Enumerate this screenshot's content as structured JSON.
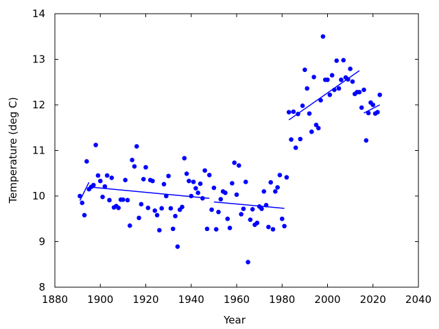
{
  "chart_data": {
    "type": "scatter",
    "title": "",
    "xlabel": "Year",
    "ylabel": "Temperature (deg C)",
    "xlim": [
      1880,
      2040
    ],
    "ylim": [
      8,
      14
    ],
    "xticks": [
      "1880",
      "1900",
      "1920",
      "1940",
      "1960",
      "1980",
      "2000",
      "2020",
      "2040"
    ],
    "yticks": [
      "8",
      "9",
      "10",
      "11",
      "12",
      "13",
      "14"
    ],
    "grid": false,
    "legend": "none",
    "colors": {
      "points": "#0000ff",
      "lines": "#0000ff",
      "axes": "#000000"
    },
    "series": [
      {
        "type": "scatter",
        "x": [
          1891,
          1892,
          1893,
          1894,
          1895,
          1896,
          1897,
          1898,
          1899,
          1900,
          1901,
          1902,
          1903,
          1904,
          1905,
          1906,
          1907,
          1908,
          1909,
          1910,
          1911,
          1912,
          1913,
          1914,
          1915,
          1916,
          1917,
          1918,
          1919,
          1920,
          1921,
          1922,
          1923,
          1924,
          1925,
          1926,
          1927,
          1928,
          1929,
          1930,
          1931,
          1932,
          1933,
          1934,
          1935,
          1936,
          1937,
          1938,
          1939,
          1940,
          1941,
          1942,
          1943,
          1944,
          1945,
          1946,
          1947,
          1948,
          1949,
          1950,
          1951,
          1952,
          1953,
          1954,
          1955,
          1956,
          1957,
          1958,
          1959,
          1960,
          1961,
          1962,
          1963,
          1964,
          1965,
          1966,
          1967,
          1968,
          1969,
          1970,
          1971,
          1972,
          1973,
          1974,
          1975,
          1976,
          1977,
          1978,
          1979,
          1980,
          1981,
          1982,
          1983,
          1984,
          1985,
          1986,
          1987,
          1988,
          1989,
          1990,
          1991,
          1992,
          1993,
          1994,
          1995,
          1996,
          1997,
          1998,
          1999,
          2000,
          2001,
          2002,
          2003,
          2004,
          2005,
          2006,
          2007,
          2008,
          2009,
          2010,
          2011,
          2012,
          2013,
          2014,
          2015,
          2016,
          2017,
          2018,
          2019,
          2020,
          2021,
          2022,
          2023
        ],
        "y": [
          10.0,
          9.85,
          9.58,
          10.76,
          10.15,
          10.2,
          10.24,
          11.12,
          10.45,
          10.33,
          9.98,
          10.21,
          10.45,
          9.91,
          10.4,
          9.75,
          9.78,
          9.74,
          9.92,
          9.92,
          10.35,
          9.91,
          9.35,
          10.79,
          10.65,
          11.09,
          9.52,
          9.82,
          10.37,
          10.63,
          9.74,
          10.35,
          10.33,
          9.68,
          9.58,
          9.25,
          9.73,
          10.26,
          10.0,
          10.44,
          9.73,
          9.28,
          9.56,
          8.89,
          9.7,
          9.76,
          10.83,
          10.49,
          10.33,
          10.0,
          10.31,
          10.17,
          10.07,
          10.27,
          9.95,
          10.56,
          9.28,
          10.46,
          9.7,
          10.18,
          9.27,
          9.65,
          9.93,
          10.1,
          10.07,
          9.5,
          9.3,
          10.28,
          10.73,
          10.03,
          10.67,
          9.6,
          9.72,
          10.31,
          8.55,
          9.48,
          9.71,
          9.37,
          9.41,
          9.77,
          9.72,
          10.1,
          9.8,
          9.32,
          10.3,
          9.27,
          10.1,
          10.19,
          10.46,
          9.5,
          9.34,
          10.41,
          11.84,
          11.24,
          11.85,
          11.06,
          11.8,
          11.25,
          11.98,
          12.77,
          12.36,
          11.81,
          11.41,
          12.61,
          11.56,
          11.49,
          12.1,
          13.5,
          12.55,
          12.55,
          12.22,
          12.65,
          12.33,
          12.97,
          12.36,
          12.55,
          12.98,
          12.6,
          12.56,
          12.79,
          12.51,
          12.24,
          12.28,
          12.28,
          11.94,
          12.33,
          11.22,
          11.82,
          12.05,
          12.0,
          11.81,
          11.84,
          12.22
        ]
      },
      {
        "type": "line",
        "name": "",
        "segments": [
          {
            "x": [
              1891,
              1895
            ],
            "y": [
              9.9,
              10.3
            ]
          },
          {
            "x": [
              1895,
              1948
            ],
            "y": [
              10.2,
              9.95
            ]
          },
          {
            "x": [
              1950,
              1981
            ],
            "y": [
              9.87,
              9.73
            ]
          },
          {
            "x": [
              1983,
              2014
            ],
            "y": [
              11.67,
              12.75
            ]
          },
          {
            "x": [
              2016,
              2023
            ],
            "y": [
              11.82,
              12.0
            ]
          }
        ]
      }
    ]
  }
}
